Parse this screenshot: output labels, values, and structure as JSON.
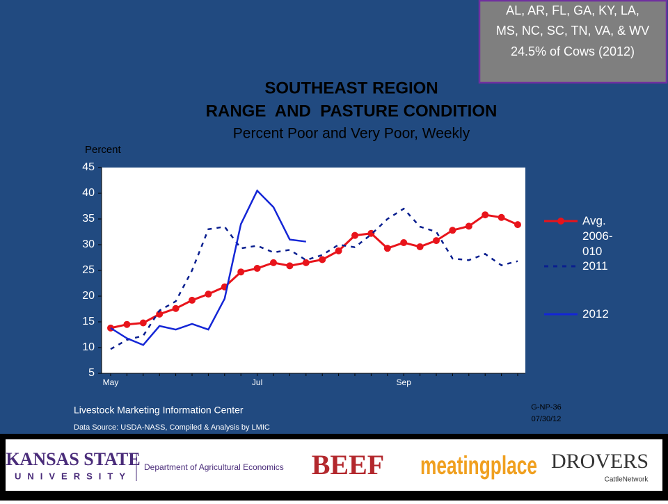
{
  "region_box": {
    "lines": [
      "AL, AR, FL, GA, KY, LA,",
      "MS, NC, SC, TN, VA, & WV",
      "24.5% of Cows (2012)"
    ]
  },
  "chart_data": {
    "type": "line",
    "title": "SOUTHEAST REGION",
    "title2": "RANGE  AND  PASTURE CONDITION",
    "subtitle": "Percent Poor and Very Poor, Weekly",
    "y_label": "Percent",
    "categories": [
      "May",
      null,
      null,
      null,
      null,
      null,
      null,
      null,
      null,
      "Jul",
      null,
      null,
      null,
      null,
      null,
      null,
      null,
      null,
      "Sep",
      null,
      null,
      null,
      null,
      null,
      null,
      null
    ],
    "ylim": [
      5,
      45
    ],
    "yticks": [
      5,
      10,
      15,
      20,
      25,
      30,
      35,
      40,
      45
    ],
    "series": [
      {
        "name": "Avg. 2006-010",
        "color": "#e8141b",
        "style": "marker",
        "values": [
          13.8,
          14.5,
          14.8,
          16.5,
          17.6,
          19.2,
          20.4,
          21.8,
          24.7,
          25.4,
          26.5,
          25.9,
          26.5,
          27.1,
          28.8,
          31.8,
          32.2,
          29.3,
          30.4,
          29.6,
          30.8,
          32.8,
          33.6,
          35.8,
          35.3,
          33.9
        ]
      },
      {
        "name": "2011",
        "color": "#0a1f8f",
        "style": "dashed",
        "values": [
          9.7,
          11.5,
          12.3,
          17.2,
          19.0,
          25.0,
          33.0,
          33.5,
          29.3,
          29.8,
          28.5,
          29.0,
          27.0,
          28.0,
          30.0,
          29.5,
          32.0,
          35.0,
          37.0,
          33.5,
          32.5,
          27.3,
          27.0,
          28.2,
          26.0,
          26.8
        ]
      },
      {
        "name": "2012",
        "color": "#1426d6",
        "style": "solid",
        "values": [
          13.8,
          11.8,
          10.5,
          14.2,
          13.5,
          14.6,
          13.5,
          19.5,
          34.0,
          40.5,
          37.3,
          31.0,
          30.6,
          null,
          null,
          null,
          null,
          null,
          null,
          null,
          null,
          null,
          null,
          null,
          null,
          null
        ]
      }
    ]
  },
  "footer": {
    "source1": "Livestock Marketing Information Center",
    "source2": "Data Source:  USDA-NASS, Compiled & Analysis by LMIC",
    "code": "G-NP-36",
    "date": "07/30/12"
  },
  "logos": {
    "ksu1": "KANSAS STATE",
    "ksu2": "UNIVERSITY",
    "dept": "Department of Agricultural Economics",
    "beef": "BEEF",
    "meat": "meatingplace",
    "drovers": "DROVERS",
    "cattle": "CattleNetwork"
  }
}
